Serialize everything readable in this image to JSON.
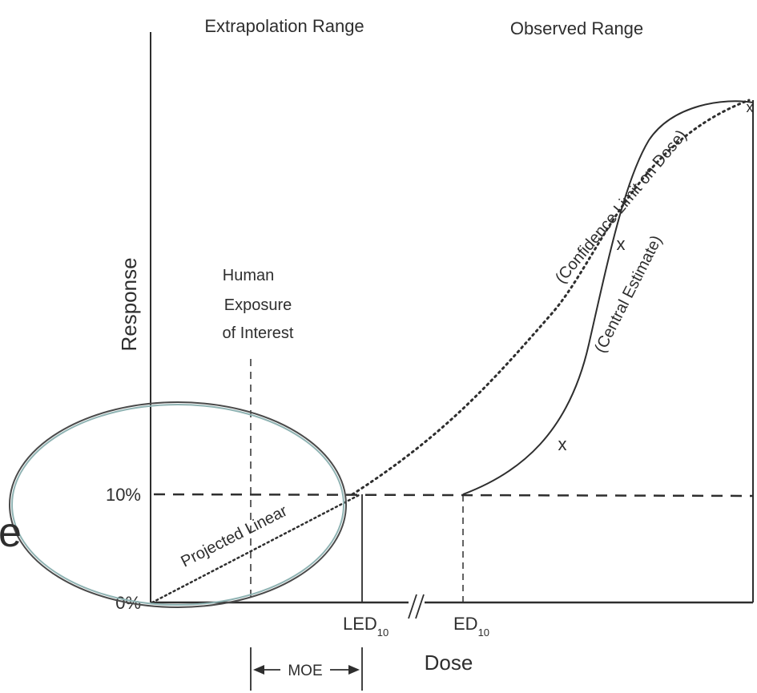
{
  "ranges": {
    "extrapolation": "Extrapolation Range",
    "observed": "Observed Range"
  },
  "axes": {
    "y_label": "Response",
    "x_label": "Dose",
    "tick_10": "10%",
    "tick_0": "0%"
  },
  "labels": {
    "human_exposure": [
      "Human",
      "Exposure",
      "of Interest"
    ],
    "confidence_limit": "(Confidence Limit on Dose)",
    "central_estimate": "(Central Estimate)",
    "projected_linear": "Projected Linear",
    "led_main": "LED",
    "led_sub": "10",
    "ed_main": "ED",
    "ed_sub": "10",
    "moe": "MOE",
    "marker": "x",
    "axis_break": "//",
    "overlay_letter": "e"
  },
  "colors": {
    "ink": "#2e2e2e",
    "ellipse_outer": "#4a4a4a",
    "ellipse_inner": "#8fb3b3"
  }
}
